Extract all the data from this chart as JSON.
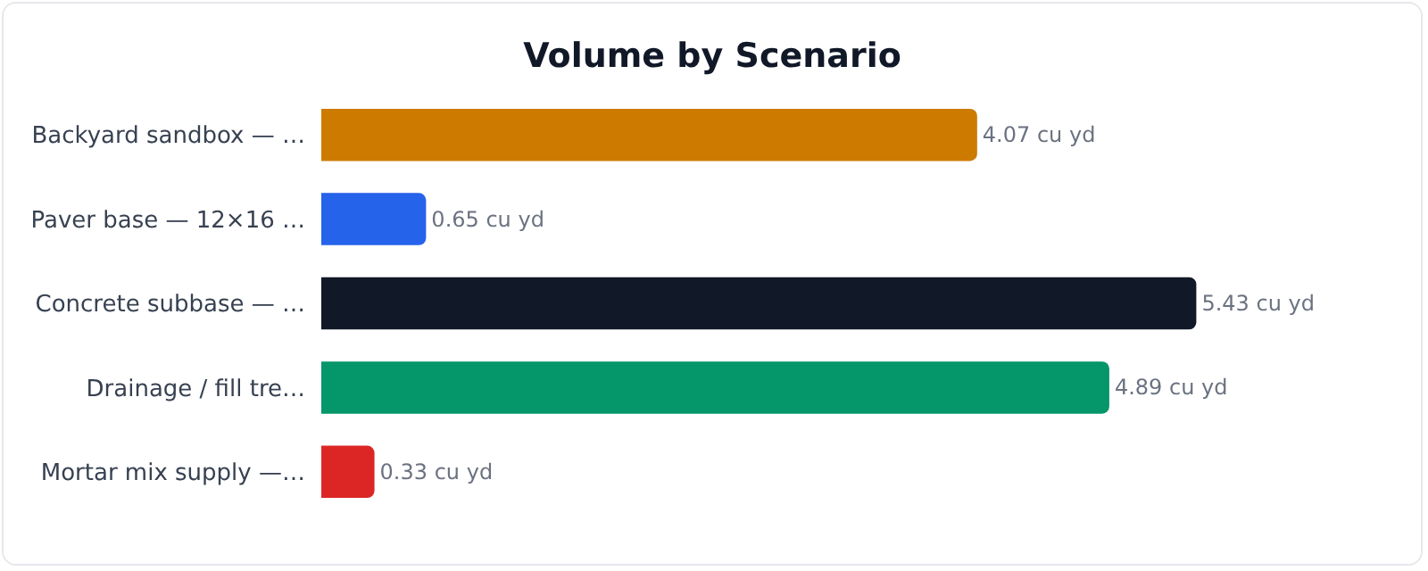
{
  "chart_data": {
    "type": "bar",
    "title": "Volume by Scenario",
    "orientation": "horizontal",
    "categories": [
      "Backyard sandbox — …",
      "Paver base — 12×16 …",
      "Concrete subbase — …",
      "Drainage / fill tre…",
      "Mortar mix supply —…"
    ],
    "values": [
      4.07,
      0.65,
      5.43,
      4.89,
      0.33
    ],
    "colors": [
      "#cc7a00",
      "#2563eb",
      "#111827",
      "#059669",
      "#dc2626"
    ],
    "value_labels": [
      "4.07 cu yd",
      "0.65 cu yd",
      "5.43 cu yd",
      "4.89 cu yd",
      "0.33 cu yd"
    ],
    "grid": false,
    "legend": false
  }
}
